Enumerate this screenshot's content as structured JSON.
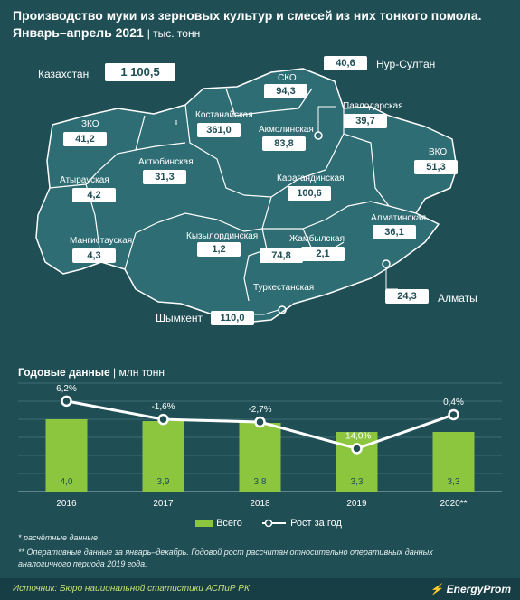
{
  "header": {
    "title_line1": "Производство муки из зерновых культур и смесей из них тонкого помола.",
    "title_line2": "Январь–апрель 2021",
    "unit": "| тыс. тонн"
  },
  "map": {
    "country": "Казахстан",
    "country_value": "1 100,5",
    "regions": [
      {
        "name": "ЗКО",
        "value": "41,2"
      },
      {
        "name": "Атырауская",
        "value": "4,2"
      },
      {
        "name": "Мангистауская",
        "value": "4,3"
      },
      {
        "name": "Актюбинская",
        "value": "31,3"
      },
      {
        "name": "Костанайская",
        "value": "361,0"
      },
      {
        "name": "СКО",
        "value": "94,3"
      },
      {
        "name": "Акмолинская",
        "value": "83,8"
      },
      {
        "name": "Павлодарская",
        "value": "39,7"
      },
      {
        "name": "ВКО",
        "value": "51,3"
      },
      {
        "name": "Карагандинская",
        "value": "100,6"
      },
      {
        "name": "Кызылординская",
        "value": "1,2"
      },
      {
        "name": "Жамбылская",
        "value": "2,1"
      },
      {
        "name": "Алматинская",
        "value": "36,1"
      },
      {
        "name": "Туркестанская",
        "value": "74,8"
      }
    ],
    "cities": [
      {
        "name": "Нур-Султан",
        "value": "40,6"
      },
      {
        "name": "Алматы",
        "value": "24,3"
      },
      {
        "name": "Шымкент",
        "value": "110,0"
      }
    ]
  },
  "chart_title": "Годовые данные",
  "chart_unit": "| млн тонн",
  "chart_data": {
    "type": "bar",
    "categories": [
      "2016",
      "2017",
      "2018",
      "2019",
      "2020**"
    ],
    "series": [
      {
        "name": "Всего",
        "type": "bar",
        "values": [
          4.0,
          3.9,
          3.8,
          3.3,
          3.3
        ],
        "labels": [
          "4,0",
          "3,9",
          "3,8",
          "3,3",
          "3,3"
        ]
      },
      {
        "name": "Рост за год",
        "type": "line",
        "values": [
          6.2,
          -1.6,
          -2.7,
          -14.0,
          0.4
        ],
        "labels": [
          "6,2%",
          "-1,6%",
          "-2,7%",
          "-14,0%",
          "0,4%"
        ]
      }
    ],
    "colors": {
      "bar": "#8cc63f",
      "line": "#ffffff"
    }
  },
  "notes": {
    "note1": "* расчётные данные",
    "note2": "** Оперативные данные за январь–декабрь. Годовой рост рассчитан относительно оперативных данных",
    "note3": "аналогичного периода 2019 года."
  },
  "footer": {
    "source": "Источник: Бюро национальной статистики АСПиР РК",
    "brand": "EnergyProm"
  }
}
